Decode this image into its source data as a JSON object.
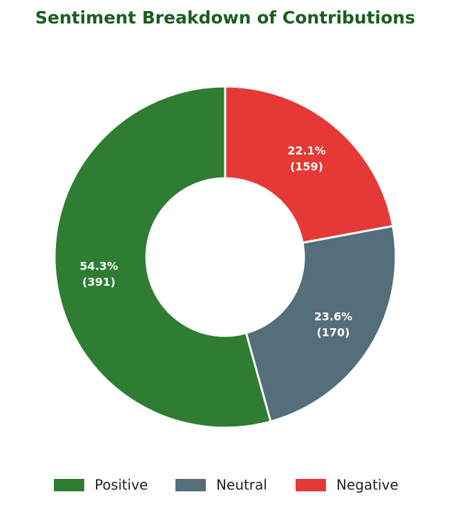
{
  "chart_data": {
    "type": "donut",
    "title": "Sentiment Breakdown of Contributions",
    "series": [
      {
        "name": "Positive",
        "color": "#2e7d32",
        "values": [
          391
        ],
        "value_labels": [
          [
            "54.3%",
            "(391)"
          ]
        ]
      },
      {
        "name": "Neutral",
        "color": "#546e7a",
        "values": [
          170
        ],
        "value_labels": [
          [
            "23.6%",
            "(170)"
          ]
        ]
      },
      {
        "name": "Negative",
        "color": "#e53935",
        "values": [
          159
        ],
        "value_labels": [
          [
            "22.1%",
            "(159)"
          ]
        ]
      }
    ],
    "legend": "bottom"
  }
}
